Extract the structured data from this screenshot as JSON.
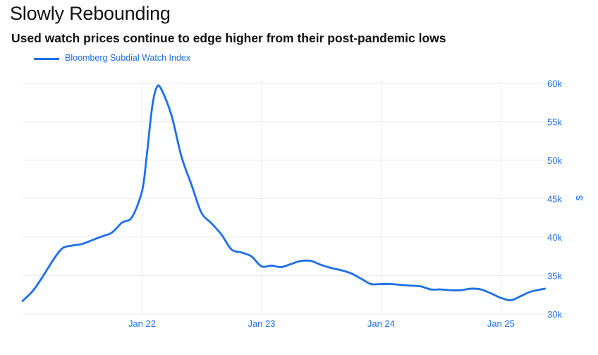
{
  "chart_data": {
    "type": "line",
    "title": "Slowly Rebounding",
    "subtitle": "Used watch prices continue to edge higher from their post-pandemic lows",
    "ylabel": "$",
    "ylim": [
      30000,
      60000
    ],
    "y_ticks": [
      30000,
      35000,
      40000,
      45000,
      50000,
      55000,
      60000
    ],
    "y_tick_labels": [
      "30k",
      "35k",
      "40k",
      "45k",
      "50k",
      "55k",
      "60k"
    ],
    "x_ticks": [
      "2022-01-01",
      "2023-01-01",
      "2024-01-01",
      "2025-01-01"
    ],
    "x_tick_labels": [
      "Jan 22",
      "Jan 23",
      "Jan 24",
      "Jan 25"
    ],
    "xlim": [
      "2021-01-01",
      "2025-05-31"
    ],
    "grid": true,
    "y_axis_position": "right",
    "legend_position": "top-left",
    "colors": {
      "series": "#1e6fe6",
      "grid": "#ececec"
    },
    "series": [
      {
        "name": "Bloomberg Subdial Watch Index",
        "points": [
          [
            "2021-01-01",
            31700
          ],
          [
            "2021-02-01",
            33000
          ],
          [
            "2021-03-01",
            34700
          ],
          [
            "2021-04-01",
            36800
          ],
          [
            "2021-05-01",
            38500
          ],
          [
            "2021-06-01",
            38900
          ],
          [
            "2021-07-01",
            39100
          ],
          [
            "2021-08-01",
            39600
          ],
          [
            "2021-09-01",
            40100
          ],
          [
            "2021-10-01",
            40600
          ],
          [
            "2021-11-01",
            41900
          ],
          [
            "2021-12-01",
            42600
          ],
          [
            "2022-01-01",
            46000
          ],
          [
            "2022-01-15",
            50500
          ],
          [
            "2022-02-01",
            57000
          ],
          [
            "2022-02-15",
            59500
          ],
          [
            "2022-03-01",
            59200
          ],
          [
            "2022-04-01",
            55800
          ],
          [
            "2022-05-01",
            50500
          ],
          [
            "2022-06-01",
            46800
          ],
          [
            "2022-07-01",
            43200
          ],
          [
            "2022-08-01",
            41800
          ],
          [
            "2022-09-01",
            40300
          ],
          [
            "2022-10-01",
            38400
          ],
          [
            "2022-11-01",
            38000
          ],
          [
            "2022-12-01",
            37500
          ],
          [
            "2023-01-01",
            36200
          ],
          [
            "2023-02-01",
            36300
          ],
          [
            "2023-03-01",
            36100
          ],
          [
            "2023-04-01",
            36500
          ],
          [
            "2023-05-01",
            36900
          ],
          [
            "2023-06-01",
            36900
          ],
          [
            "2023-07-01",
            36400
          ],
          [
            "2023-08-01",
            36000
          ],
          [
            "2023-09-01",
            35700
          ],
          [
            "2023-10-01",
            35300
          ],
          [
            "2023-11-01",
            34600
          ],
          [
            "2023-12-01",
            33900
          ],
          [
            "2024-01-01",
            33900
          ],
          [
            "2024-02-01",
            33900
          ],
          [
            "2024-03-01",
            33800
          ],
          [
            "2024-04-01",
            33700
          ],
          [
            "2024-05-01",
            33600
          ],
          [
            "2024-06-01",
            33200
          ],
          [
            "2024-07-01",
            33200
          ],
          [
            "2024-08-01",
            33100
          ],
          [
            "2024-09-01",
            33100
          ],
          [
            "2024-10-01",
            33300
          ],
          [
            "2024-11-01",
            33200
          ],
          [
            "2024-12-01",
            32700
          ],
          [
            "2025-01-01",
            32100
          ],
          [
            "2025-02-01",
            31800
          ],
          [
            "2025-03-01",
            32300
          ],
          [
            "2025-04-01",
            32900
          ],
          [
            "2025-05-15",
            33300
          ]
        ]
      }
    ]
  }
}
